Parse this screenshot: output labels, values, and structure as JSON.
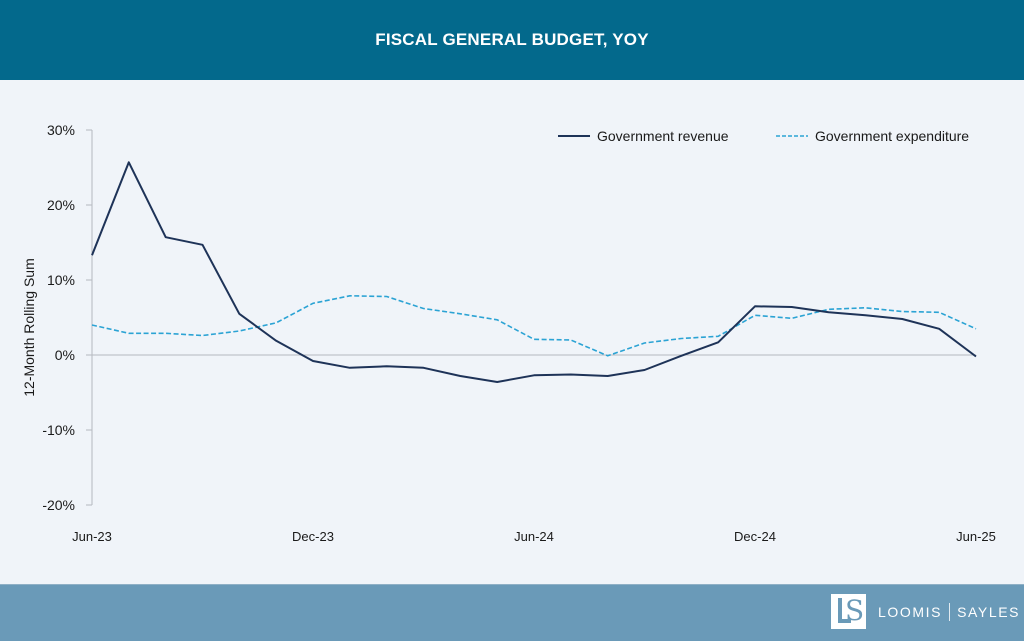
{
  "header": {
    "title": "FISCAL GENERAL BUDGET, YOY"
  },
  "footer": {
    "logo_mark": "LS",
    "brand_left": "LOOMIS",
    "brand_right": "SAYLES"
  },
  "colors": {
    "header_bg": "#03698c",
    "footer_bg": "#6a9ab8",
    "revenue": "#1e3358",
    "expenditure": "#2ba3d4"
  },
  "chart_data": {
    "type": "line",
    "title": "FISCAL GENERAL BUDGET, YOY",
    "xlabel": "",
    "ylabel": "12-Month Rolling Sum",
    "ylim": [
      -20,
      30
    ],
    "yticks": [
      30,
      20,
      10,
      0,
      -10,
      -20
    ],
    "ytick_labels": [
      "30%",
      "20%",
      "10%",
      "0%",
      "-10%",
      "-20%"
    ],
    "x": [
      "Jun-23",
      "Jul-23",
      "Aug-23",
      "Sep-23",
      "Oct-23",
      "Nov-23",
      "Dec-23",
      "Jan-24",
      "Feb-24",
      "Mar-24",
      "Apr-24",
      "May-24",
      "Jun-24",
      "Jul-24",
      "Aug-24",
      "Sep-24",
      "Oct-24",
      "Nov-24",
      "Dec-24",
      "Jan-25",
      "Feb-25",
      "Mar-25",
      "Apr-25",
      "May-25",
      "Jun-25"
    ],
    "xtick_labels": [
      {
        "index": 0,
        "label": "Jun-23"
      },
      {
        "index": 6,
        "label": "Dec-23"
      },
      {
        "index": 12,
        "label": "Jun-24"
      },
      {
        "index": 18,
        "label": "Dec-24"
      },
      {
        "index": 24,
        "label": "Jun-25"
      }
    ],
    "grid": false,
    "zero_line": true,
    "legend": {
      "position": "top-right"
    },
    "series": [
      {
        "name": "Government revenue",
        "style": "solid",
        "color": "#1e3358",
        "values": [
          13.3,
          25.7,
          15.7,
          14.7,
          5.5,
          1.9,
          -0.8,
          -1.7,
          -1.5,
          -1.7,
          -2.8,
          -3.6,
          -2.7,
          -2.6,
          -2.8,
          -2.0,
          -0.1,
          1.7,
          6.5,
          6.4,
          5.7,
          5.3,
          4.8,
          3.5,
          -0.2
        ]
      },
      {
        "name": "Government expenditure",
        "style": "dashed",
        "color": "#2ba3d4",
        "values": [
          4.0,
          2.9,
          2.9,
          2.6,
          3.2,
          4.3,
          6.9,
          7.9,
          7.8,
          6.2,
          5.5,
          4.7,
          2.1,
          2.0,
          -0.1,
          1.6,
          2.2,
          2.5,
          5.3,
          4.9,
          6.1,
          6.3,
          5.8,
          5.7,
          3.5
        ]
      }
    ]
  }
}
